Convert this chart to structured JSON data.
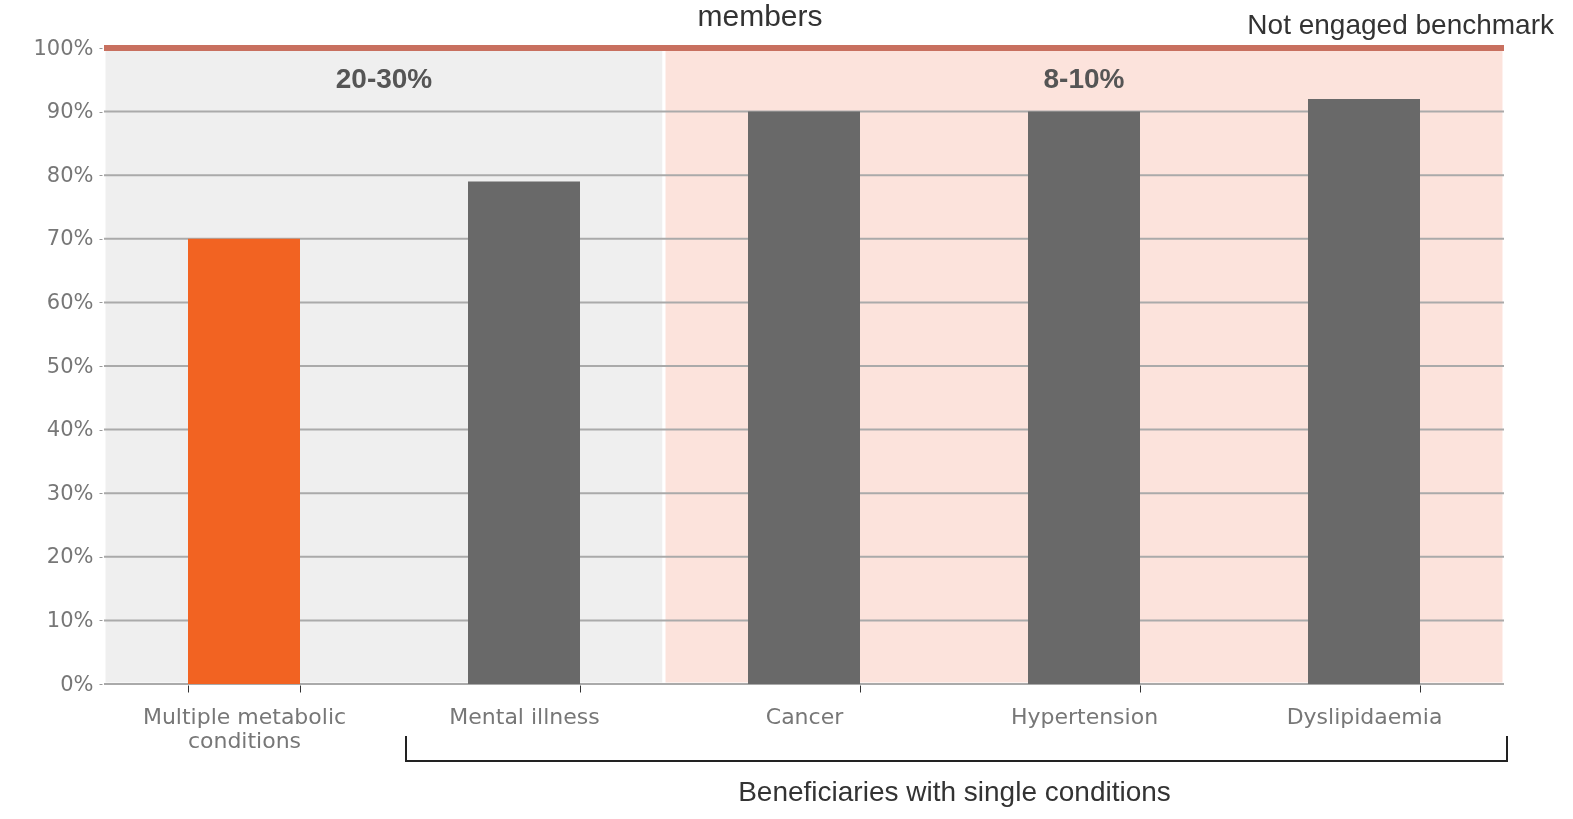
{
  "chart_data": {
    "type": "bar",
    "title": "members",
    "categories": [
      "Multiple metabolic conditions",
      "Mental illness",
      "Cancer",
      "Hypertension",
      "Dyslipidaemia"
    ],
    "values": [
      70,
      79,
      90,
      90,
      92
    ],
    "colors": [
      "#f26322",
      "#696969",
      "#696969",
      "#696969",
      "#696969"
    ],
    "ylim": [
      0,
      100
    ],
    "yticks": [
      {
        "value": 0,
        "label": "0%"
      },
      {
        "value": 10,
        "label": "10%"
      },
      {
        "value": 20,
        "label": "20%"
      },
      {
        "value": 30,
        "label": "30%"
      },
      {
        "value": 40,
        "label": "40%"
      },
      {
        "value": 50,
        "label": "50%"
      },
      {
        "value": 60,
        "label": "60%"
      },
      {
        "value": 70,
        "label": "70%"
      },
      {
        "value": 80,
        "label": "80%"
      },
      {
        "value": 90,
        "label": "90%"
      },
      {
        "value": 100,
        "label": "100%"
      }
    ],
    "grid": "y",
    "bands": [
      {
        "axis": "x",
        "from": "Multiple metabolic conditions",
        "to": "Mental illness",
        "label": "20-30%",
        "color": "#efefef"
      },
      {
        "axis": "x",
        "from": "Cancer",
        "to": "Dyslipidaemia",
        "label": "8-10%",
        "color": "#fce3dc"
      }
    ],
    "ref_lines": [
      {
        "axis": "y",
        "value": 100,
        "label": "Not engaged benchmark",
        "color": "#c8705f"
      }
    ],
    "annotations": [
      "Beneficiaries with single conditions"
    ]
  }
}
